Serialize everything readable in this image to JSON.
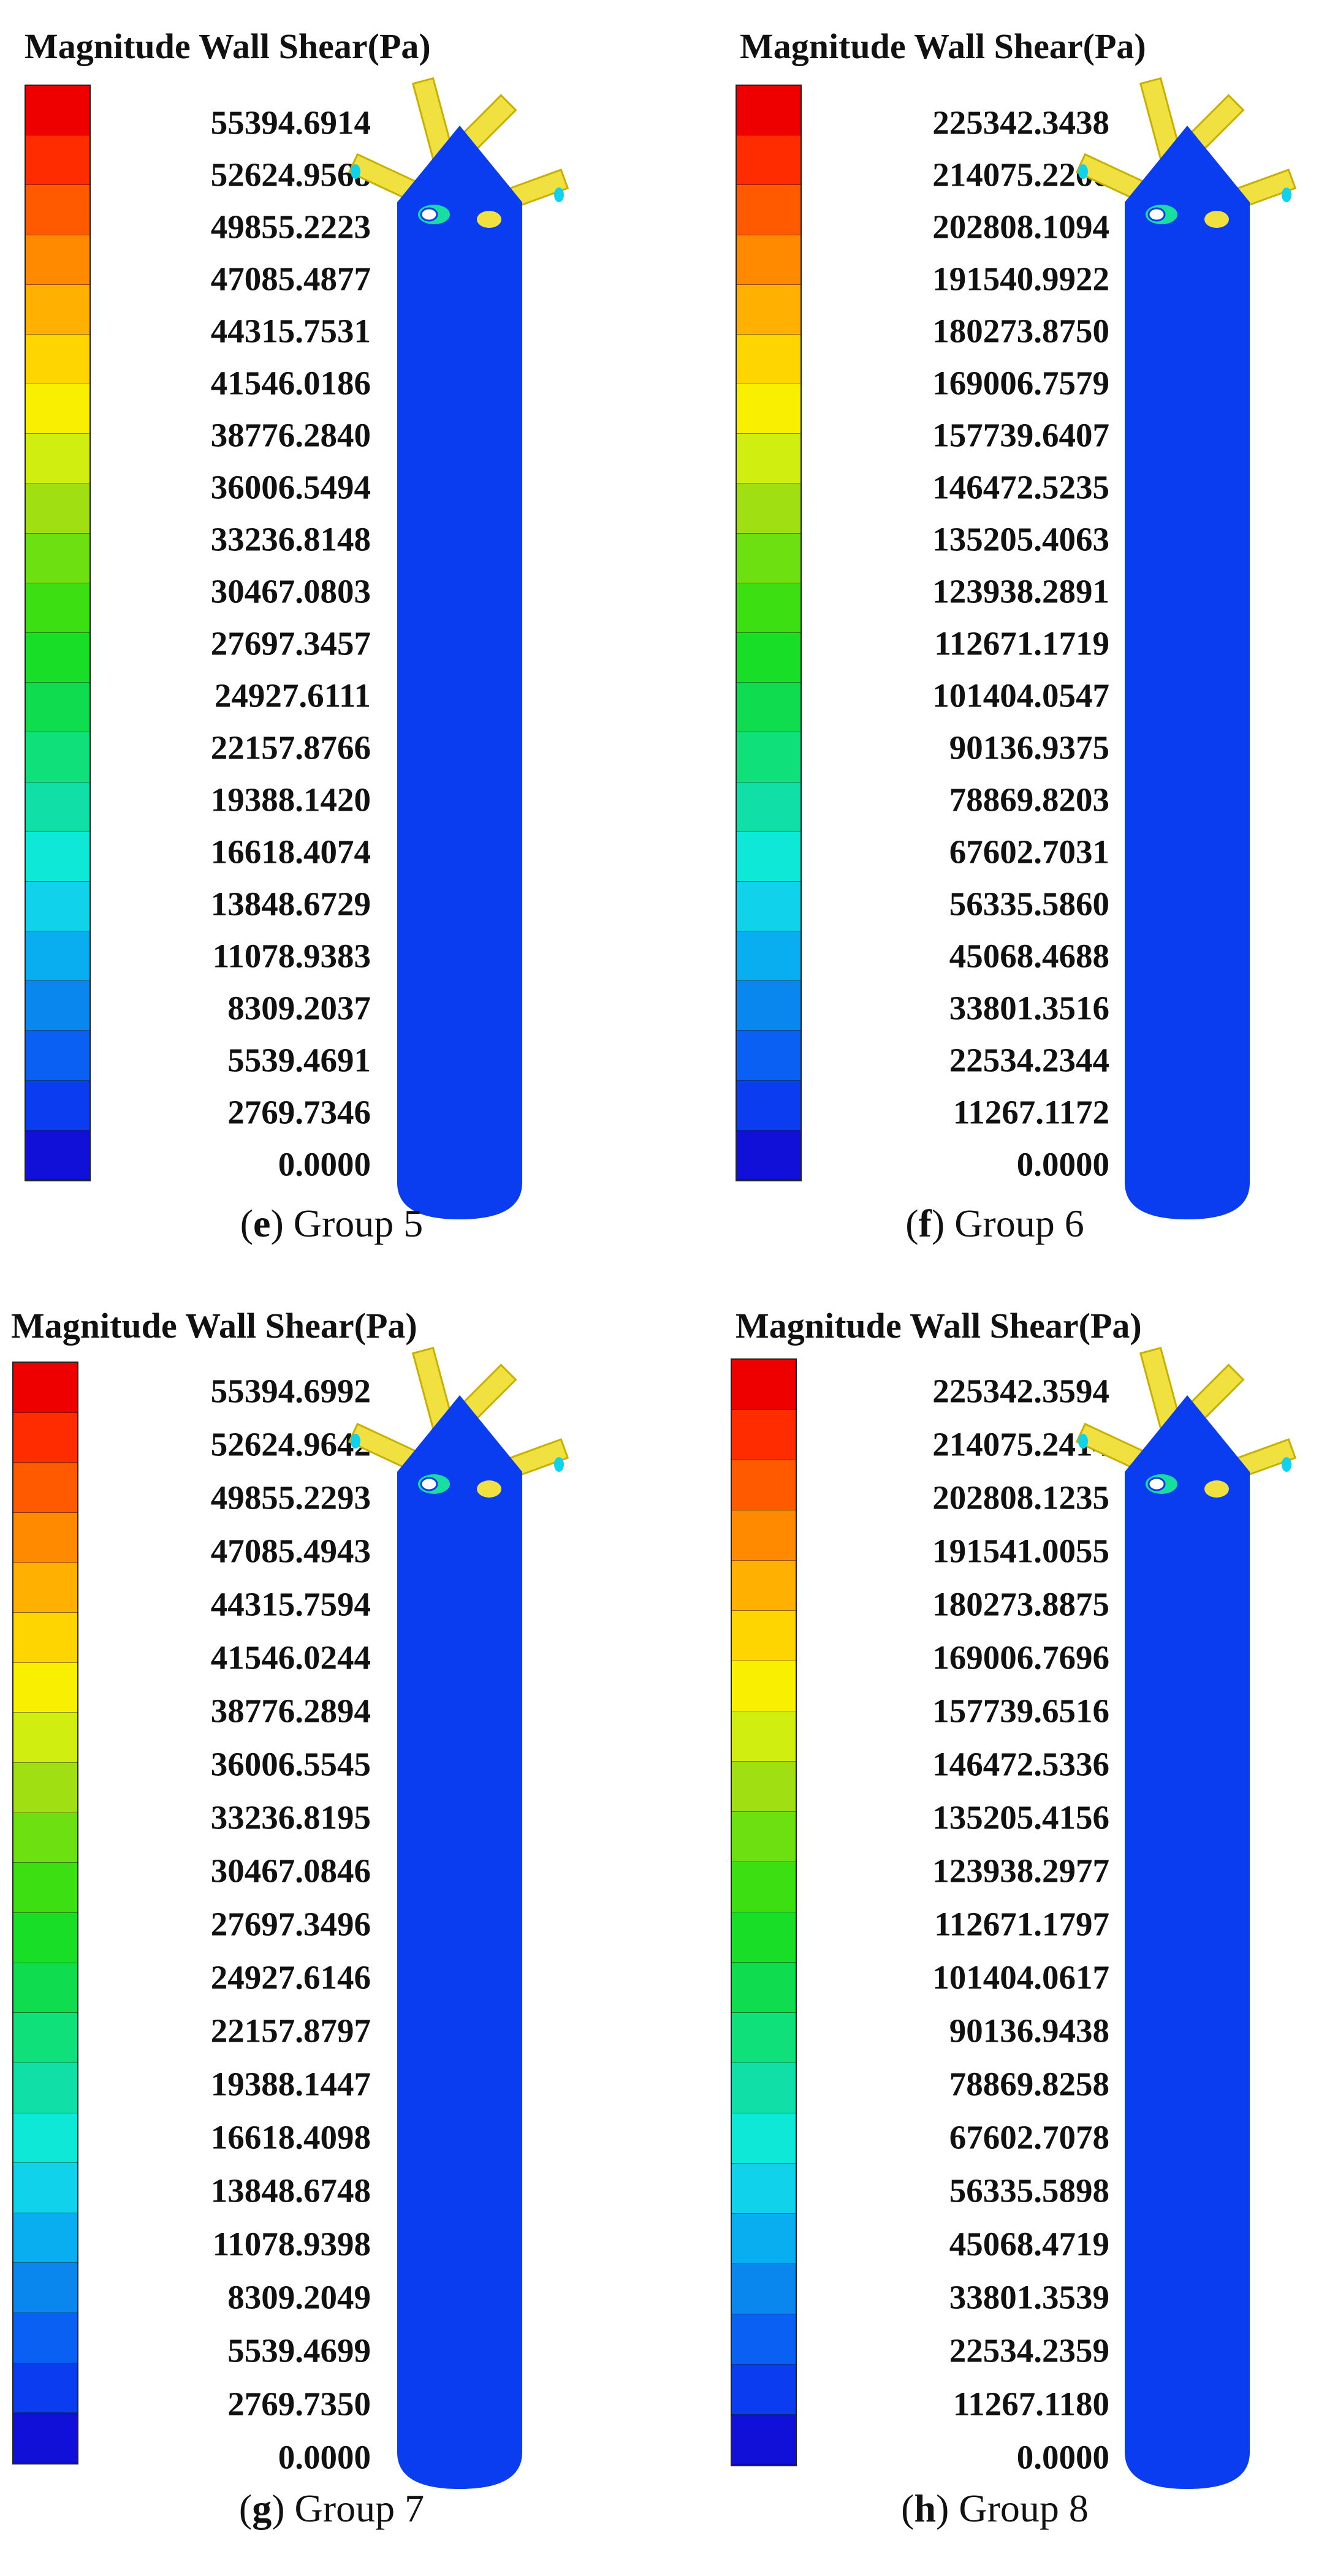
{
  "colormap": [
    "#1010d8",
    "#0b3cef",
    "#0a60f2",
    "#0a86ef",
    "#09aef0",
    "#10d2ea",
    "#0ee8d6",
    "#10e0a8",
    "#0fe07a",
    "#10dc50",
    "#18de28",
    "#3cdf12",
    "#6ce010",
    "#a0e012",
    "#d0ee10",
    "#f8f000",
    "#ffd500",
    "#ffb000",
    "#ff8a00",
    "#ff5a00",
    "#ff2c00",
    "#ee0000"
  ],
  "vessel_color": "#0a3cf0",
  "nozzle_color": "#f0e040",
  "panels": [
    {
      "title": "Magnitude Wall Shear(Pa)",
      "caption_letter": "e",
      "caption_text": " Group 5",
      "levels": [
        "55394.6914",
        "52624.9568",
        "49855.2223",
        "47085.4877",
        "44315.7531",
        "41546.0186",
        "38776.2840",
        "36006.5494",
        "33236.8148",
        "30467.0803",
        "27697.3457",
        "24927.6111",
        "22157.8766",
        "19388.1420",
        "16618.4074",
        "13848.6729",
        "11078.9383",
        "8309.2037",
        "5539.4691",
        "2769.7346",
        "0.0000"
      ]
    },
    {
      "title": "Magnitude Wall Shear(Pa)",
      "caption_letter": "f",
      "caption_text": " Group 6",
      "levels": [
        "225342.3438",
        "214075.2266",
        "202808.1094",
        "191540.9922",
        "180273.8750",
        "169006.7579",
        "157739.6407",
        "146472.5235",
        "135205.4063",
        "123938.2891",
        "112671.1719",
        "101404.0547",
        "90136.9375",
        "78869.8203",
        "67602.7031",
        "56335.5860",
        "45068.4688",
        "33801.3516",
        "22534.2344",
        "11267.1172",
        "0.0000"
      ]
    },
    {
      "title": "Magnitude Wall Shear(Pa)",
      "caption_letter": "g",
      "caption_text": " Group 7",
      "levels": [
        "55394.6992",
        "52624.9642",
        "49855.2293",
        "47085.4943",
        "44315.7594",
        "41546.0244",
        "38776.2894",
        "36006.5545",
        "33236.8195",
        "30467.0846",
        "27697.3496",
        "24927.6146",
        "22157.8797",
        "19388.1447",
        "16618.4098",
        "13848.6748",
        "11078.9398",
        "8309.2049",
        "5539.4699",
        "2769.7350",
        "0.0000"
      ]
    },
    {
      "title": "Magnitude Wall Shear(Pa)",
      "caption_letter": "h",
      "caption_text": " Group 8",
      "levels": [
        "225342.3594",
        "214075.2414",
        "202808.1235",
        "191541.0055",
        "180273.8875",
        "169006.7696",
        "157739.6516",
        "146472.5336",
        "135205.4156",
        "123938.2977",
        "112671.1797",
        "101404.0617",
        "90136.9438",
        "78869.8258",
        "67602.7078",
        "56335.5898",
        "45068.4719",
        "33801.3539",
        "22534.2359",
        "11267.1180",
        "0.0000"
      ]
    }
  ]
}
